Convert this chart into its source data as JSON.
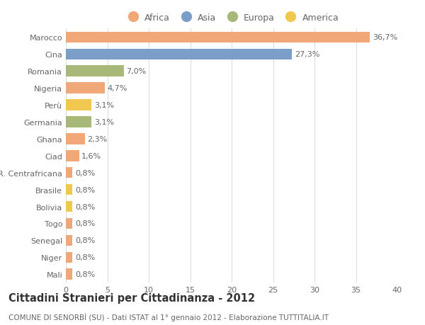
{
  "categories": [
    "Marocco",
    "Cina",
    "Romania",
    "Nigeria",
    "Perù",
    "Germania",
    "Ghana",
    "Ciad",
    "R. Centrafricana",
    "Brasile",
    "Bolivia",
    "Togo",
    "Senegal",
    "Niger",
    "Mali"
  ],
  "values": [
    36.7,
    27.3,
    7.0,
    4.7,
    3.1,
    3.1,
    2.3,
    1.6,
    0.8,
    0.8,
    0.8,
    0.8,
    0.8,
    0.8,
    0.8
  ],
  "labels": [
    "36,7%",
    "27,3%",
    "7,0%",
    "4,7%",
    "3,1%",
    "3,1%",
    "2,3%",
    "1,6%",
    "0,8%",
    "0,8%",
    "0,8%",
    "0,8%",
    "0,8%",
    "0,8%",
    "0,8%"
  ],
  "continents": [
    "Africa",
    "Asia",
    "Europa",
    "Africa",
    "America",
    "Europa",
    "Africa",
    "Africa",
    "Africa",
    "America",
    "America",
    "Africa",
    "Africa",
    "Africa",
    "Africa"
  ],
  "colors": {
    "Africa": "#F0A878",
    "Asia": "#7B9EC8",
    "Europa": "#A8B878",
    "America": "#F0C850"
  },
  "legend_order": [
    "Africa",
    "Asia",
    "Europa",
    "America"
  ],
  "xlim": [
    0,
    40
  ],
  "xticks": [
    0,
    5,
    10,
    15,
    20,
    25,
    30,
    35,
    40
  ],
  "title": "Cittadini Stranieri per Cittadinanza - 2012",
  "subtitle": "COMUNE DI SENORBÌ (SU) - Dati ISTAT al 1° gennaio 2012 - Elaborazione TUTTITALIA.IT",
  "background_color": "#ffffff",
  "grid_color": "#dddddd",
  "bar_height": 0.65,
  "label_fontsize": 8,
  "tick_fontsize": 8,
  "title_fontsize": 10.5,
  "subtitle_fontsize": 7.5
}
